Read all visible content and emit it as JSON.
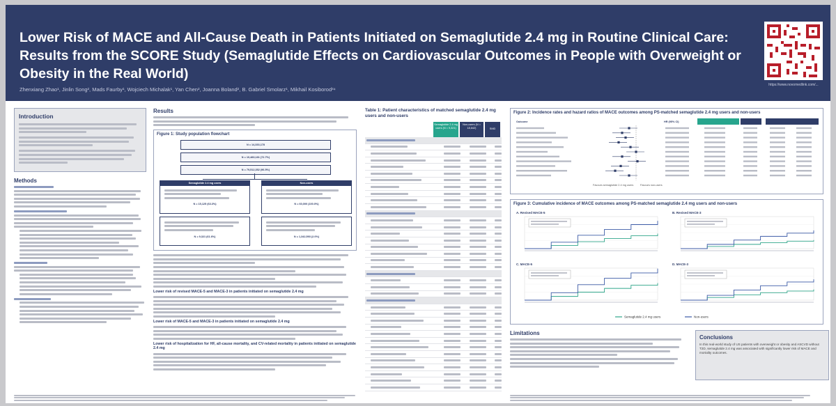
{
  "header": {
    "title": "Lower Risk of MACE and All-Cause Death in Patients Initiated on Semaglutide 2.4 mg in Routine Clinical Care: Results from the SCORE Study (Semaglutide Effects on Cardiovascular Outcomes in People with Overweight or Obesity in the Real World)",
    "authors": "Zhenxiang Zhao¹, Jinlin Song², Mads Faurby¹, Wojciech Michalak¹, Yan Chen², Joanna Boland², B. Gabriel Smolarz¹, Mikhail Kosiborod³⁴",
    "qr_caption": "https://www.novomedlink.com/..."
  },
  "intro": {
    "heading": "Introduction"
  },
  "methods": {
    "heading": "Methods"
  },
  "results": {
    "heading": "Results",
    "figure1_title": "Figure 1: Study population flowchart",
    "flow_n1": "N = 14,333,178",
    "flow_n2": "N = 10,483,181 (72.7%)",
    "flow_n3": "N = 79,512,352 (96.5%)",
    "flow_left_head": "Semaglutide 2.4 mg users",
    "flow_right_head": "Non-users",
    "flow_left_n": "N = 15,125 (63.3%)",
    "flow_right_n": "N = 60,000 (100.0%)",
    "flow_left_n2": "N = 9,321 (61.6%)",
    "flow_right_n2": "N = 1,342,593 (2.0%)",
    "sub1": "Lower risk of revised MACE-5 and MACE-3 in patients initiated on semaglutide 2.4 mg",
    "sub2": "Lower risk of MACE-5 and MACE-3 in patients initiated on semaglutide 2.4 mg",
    "sub3": "Lower risk of hospitalization for HF, all-cause mortality, and CV-related mortality in patients initiated on semaglutide 2.4 mg"
  },
  "table1": {
    "title": "Table 1: Patient characteristics of matched semaglutide 2.4 mg users and non-users",
    "col_sema": "Semaglutide 2.4 mg users (N = 9,321)",
    "col_non": "Non-users (N = 18,642)",
    "col_smd": "SMD"
  },
  "figure2": {
    "title": "Figure 2: Incidence rates and hazard ratios of MACE outcomes among PS-matched semaglutide 2.4 mg users and non-users",
    "col_outcome": "Outcome",
    "col_hr": "HR (95% CI)",
    "axis_left": "Favours semaglutide 2.4 mg users",
    "axis_right": "Favours non-users"
  },
  "figure3": {
    "title": "Figure 3: Cumulative incidence of MACE outcomes among PS-matched semaglutide 2.4 mg users and non-users",
    "panel_a": "A. Revised MACE-5",
    "panel_b": "B. Revised MACE-3",
    "panel_c": "C. MACE-5",
    "panel_d": "D. MACE-3",
    "legend_sema": "Semaglutide 2.4 mg users",
    "legend_non": "Non-users"
  },
  "limitations": {
    "heading": "Limitations"
  },
  "conclusions": {
    "heading": "Conclusions",
    "text": "In this real-world study of US patients with overweight or obesity and ASCVD without T2D, semaglutide 2.4 mg was associated with significantly lower risk of MACE and mortality outcomes."
  },
  "colors": {
    "navy": "#2f3d68",
    "teal": "#27a58d",
    "green_curve": "#2fa58a",
    "blue_curve": "#3b5aa6"
  },
  "chart_data": [
    {
      "type": "line",
      "panel": "A. Revised MACE-5",
      "series": [
        {
          "name": "Semaglutide 2.4 mg users",
          "x": [
            0,
            6,
            12,
            18,
            24,
            30
          ],
          "y": [
            0,
            0.6,
            1.3,
            1.9,
            2.4,
            2.8
          ]
        },
        {
          "name": "Non-users",
          "x": [
            0,
            6,
            12,
            18,
            24,
            30
          ],
          "y": [
            0,
            1.2,
            2.5,
            3.6,
            4.5,
            5.2
          ]
        }
      ]
    },
    {
      "type": "line",
      "panel": "B. Revised MACE-3",
      "series": [
        {
          "name": "Semaglutide 2.4 mg users",
          "x": [
            0,
            6,
            12,
            18,
            24,
            30
          ],
          "y": [
            0,
            0.4,
            0.8,
            1.1,
            1.4,
            1.6
          ]
        },
        {
          "name": "Non-users",
          "x": [
            0,
            6,
            12,
            18,
            24,
            30
          ],
          "y": [
            0,
            0.8,
            1.6,
            2.3,
            2.9,
            3.4
          ]
        }
      ]
    },
    {
      "type": "line",
      "panel": "C. MACE-5",
      "series": [
        {
          "name": "Semaglutide 2.4 mg users",
          "x": [
            0,
            6,
            12,
            18,
            24,
            30
          ],
          "y": [
            0,
            0.7,
            1.5,
            2.2,
            2.8,
            3.2
          ]
        },
        {
          "name": "Non-users",
          "x": [
            0,
            6,
            12,
            18,
            24,
            30
          ],
          "y": [
            0,
            1.4,
            2.9,
            4.1,
            5.1,
            5.9
          ]
        }
      ]
    },
    {
      "type": "line",
      "panel": "D. MACE-3",
      "series": [
        {
          "name": "Semaglutide 2.4 mg users",
          "x": [
            0,
            6,
            12,
            18,
            24,
            30
          ],
          "y": [
            0,
            0.5,
            1.0,
            1.4,
            1.7,
            2.0
          ]
        },
        {
          "name": "Non-users",
          "x": [
            0,
            6,
            12,
            18,
            24,
            30
          ],
          "y": [
            0,
            0.9,
            1.9,
            2.7,
            3.4,
            3.9
          ]
        }
      ]
    }
  ]
}
